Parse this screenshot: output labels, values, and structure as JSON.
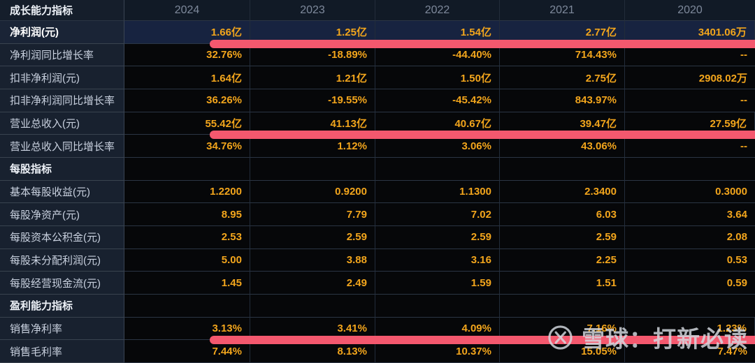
{
  "table": {
    "header_label": "成长能力指标",
    "columns": [
      "2024",
      "2023",
      "2022",
      "2021",
      "2020"
    ],
    "rows": [
      {
        "label": "净利润(元)",
        "type": "highlight",
        "marked": true,
        "values": [
          "1.66亿",
          "1.25亿",
          "1.54亿",
          "2.77亿",
          "3401.06万"
        ]
      },
      {
        "label": "净利润同比增长率",
        "type": "data",
        "marked": false,
        "values": [
          "32.76%",
          "-18.89%",
          "-44.40%",
          "714.43%",
          "--"
        ]
      },
      {
        "label": "扣非净利润(元)",
        "type": "data",
        "marked": false,
        "values": [
          "1.64亿",
          "1.21亿",
          "1.50亿",
          "2.75亿",
          "2908.02万"
        ]
      },
      {
        "label": "扣非净利润同比增长率",
        "type": "data",
        "marked": false,
        "values": [
          "36.26%",
          "-19.55%",
          "-45.42%",
          "843.97%",
          "--"
        ]
      },
      {
        "label": "营业总收入(元)",
        "type": "data",
        "marked": true,
        "values": [
          "55.42亿",
          "41.13亿",
          "40.67亿",
          "39.47亿",
          "27.59亿"
        ]
      },
      {
        "label": "营业总收入同比增长率",
        "type": "data",
        "marked": false,
        "values": [
          "34.76%",
          "1.12%",
          "3.06%",
          "43.06%",
          "--"
        ]
      },
      {
        "label": "每股指标",
        "type": "section",
        "marked": false,
        "values": [
          "",
          "",
          "",
          "",
          ""
        ]
      },
      {
        "label": "基本每股收益(元)",
        "type": "data",
        "marked": false,
        "values": [
          "1.2200",
          "0.9200",
          "1.1300",
          "2.3400",
          "0.3000"
        ]
      },
      {
        "label": "每股净资产(元)",
        "type": "data",
        "marked": false,
        "values": [
          "8.95",
          "7.79",
          "7.02",
          "6.03",
          "3.64"
        ]
      },
      {
        "label": "每股资本公积金(元)",
        "type": "data",
        "marked": false,
        "values": [
          "2.53",
          "2.59",
          "2.59",
          "2.59",
          "2.08"
        ]
      },
      {
        "label": "每股未分配利润(元)",
        "type": "data",
        "marked": false,
        "values": [
          "5.00",
          "3.88",
          "3.16",
          "2.25",
          "0.53"
        ]
      },
      {
        "label": "每股经营现金流(元)",
        "type": "data",
        "marked": false,
        "values": [
          "1.45",
          "2.49",
          "1.59",
          "1.51",
          "0.59"
        ]
      },
      {
        "label": "盈利能力指标",
        "type": "section",
        "marked": false,
        "values": [
          "",
          "",
          "",
          "",
          ""
        ]
      },
      {
        "label": "销售净利率",
        "type": "data",
        "marked": true,
        "values": [
          "3.13%",
          "3.41%",
          "4.09%",
          "7.16%",
          "1.23%"
        ]
      },
      {
        "label": "销售毛利率",
        "type": "data",
        "marked": false,
        "values": [
          "7.44%",
          "8.13%",
          "10.37%",
          "15.05%",
          "7.47%"
        ]
      }
    ]
  },
  "watermark": {
    "text": "雪球：打新必读"
  },
  "colors": {
    "value_accent": "#F2A51C",
    "marker_highlight": "#F4586E",
    "selected_row_bg": "#172340",
    "header_text": "#7E899B"
  }
}
